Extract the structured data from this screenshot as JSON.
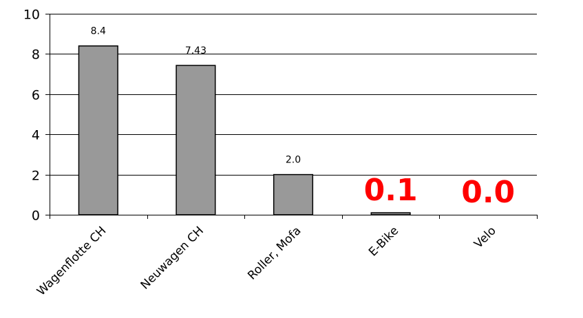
{
  "chart_data": {
    "type": "bar",
    "title": "",
    "xlabel": "",
    "ylabel": "",
    "categories": [
      "Wagenflotte CH",
      "Neuwagen CH",
      "Roller, Mofa",
      "E-Bike",
      "Velo"
    ],
    "values": [
      8.4,
      7.43,
      2.0,
      0.1,
      0.0
    ],
    "value_labels": [
      "8.4",
      "7.43",
      "2.0",
      "0.1",
      "0.0"
    ],
    "highlighted_labels": [
      false,
      false,
      false,
      true,
      true
    ],
    "ylim": [
      0,
      10
    ],
    "yticks": [
      0,
      2,
      4,
      6,
      8,
      10
    ],
    "ytick_labels": [
      "0",
      "2",
      "4",
      "6",
      "8",
      "10"
    ],
    "grid": true,
    "legend": false,
    "colors": {
      "bar_fill": "#999999",
      "bar_stroke": "#000000",
      "grid": "#000000",
      "highlight_label": "#ff0000"
    }
  }
}
